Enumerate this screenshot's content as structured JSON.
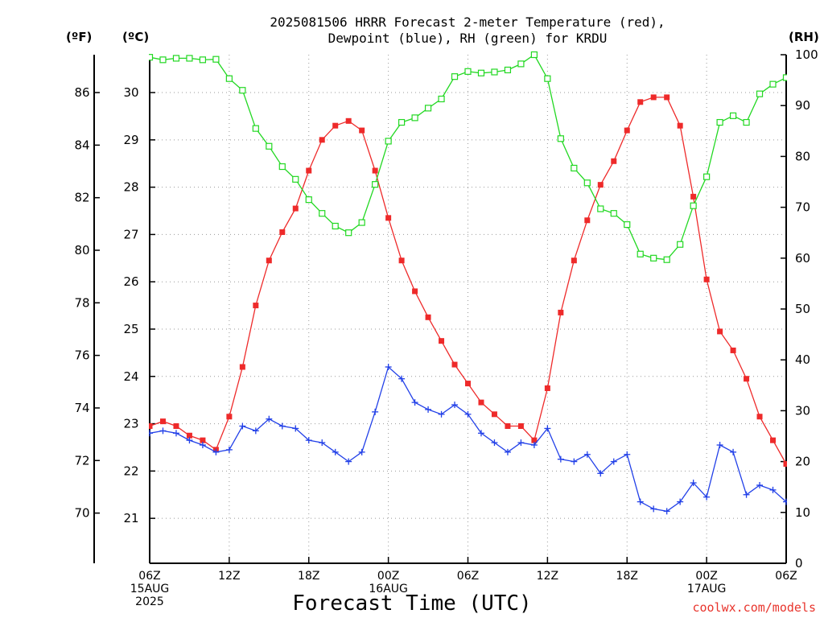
{
  "title_line1": "2025081506 HRRR Forecast 2-meter Temperature (red),",
  "title_line2": "Dewpoint (blue), RH (green) for KRDU",
  "credit": "coolwx.com/models",
  "colors": {
    "temperature": "#ee2a2a",
    "dewpoint": "#2240e8",
    "rh": "#22d822",
    "axis": "#000000",
    "grid": "#999999",
    "credit": "#e8342c"
  },
  "chart_data": {
    "type": "line",
    "xlabel": "Forecast Time (UTC)",
    "x_unit": "forecast hour from 2025-08-15 06Z",
    "x": [
      0,
      1,
      2,
      3,
      4,
      5,
      6,
      7,
      8,
      9,
      10,
      11,
      12,
      13,
      14,
      15,
      16,
      17,
      18,
      19,
      20,
      21,
      22,
      23,
      24,
      25,
      26,
      27,
      28,
      29,
      30,
      31,
      32,
      33,
      34,
      35,
      36,
      37,
      38,
      39,
      40,
      41,
      42,
      43,
      44,
      45,
      46,
      47,
      48
    ],
    "xlim": [
      0,
      48
    ],
    "x_ticks": [
      {
        "hour": 0,
        "lines": [
          "06Z",
          "15AUG",
          "2025"
        ]
      },
      {
        "hour": 6,
        "lines": [
          "12Z"
        ]
      },
      {
        "hour": 12,
        "lines": [
          "18Z"
        ]
      },
      {
        "hour": 18,
        "lines": [
          "00Z",
          "16AUG"
        ]
      },
      {
        "hour": 24,
        "lines": [
          "06Z"
        ]
      },
      {
        "hour": 30,
        "lines": [
          "12Z"
        ]
      },
      {
        "hour": 36,
        "lines": [
          "18Z"
        ]
      },
      {
        "hour": 42,
        "lines": [
          "00Z",
          "17AUG"
        ]
      },
      {
        "hour": 48,
        "lines": [
          "06Z"
        ]
      }
    ],
    "axes": {
      "fahrenheit": {
        "label": "(ºF)",
        "ticks": [
          70,
          72,
          74,
          76,
          78,
          80,
          82,
          84,
          86
        ]
      },
      "celsius": {
        "label": "(ºC)",
        "ticks": [
          21,
          22,
          23,
          24,
          25,
          26,
          27,
          28,
          29,
          30
        ],
        "ylim": [
          20.05,
          30.8
        ]
      },
      "rh": {
        "label": "(RH)",
        "ticks": [
          0,
          10,
          20,
          30,
          40,
          50,
          60,
          70,
          80,
          90,
          100
        ],
        "ylim": [
          0,
          100
        ]
      }
    },
    "grid": true,
    "series": [
      {
        "name": "Temperature",
        "axis": "celsius",
        "marker": "filled-square",
        "values": [
          22.95,
          23.05,
          22.95,
          22.75,
          22.65,
          22.45,
          23.15,
          24.2,
          25.5,
          26.45,
          27.05,
          27.55,
          28.35,
          29.0,
          29.3,
          29.4,
          29.2,
          28.35,
          27.35,
          26.45,
          25.8,
          25.25,
          24.75,
          24.25,
          23.85,
          23.45,
          23.2,
          22.95,
          22.95,
          22.65,
          23.75,
          25.35,
          26.45,
          27.3,
          28.05,
          28.55,
          29.2,
          29.8,
          29.9,
          29.9,
          29.3,
          27.8,
          26.05,
          24.95,
          24.55,
          23.95,
          23.15,
          22.65,
          22.15
        ]
      },
      {
        "name": "Dewpoint",
        "axis": "celsius",
        "marker": "plus",
        "values": [
          22.8,
          22.85,
          22.8,
          22.65,
          22.55,
          22.4,
          22.45,
          22.95,
          22.85,
          23.1,
          22.95,
          22.9,
          22.65,
          22.6,
          22.4,
          22.2,
          22.4,
          23.25,
          24.2,
          23.95,
          23.45,
          23.3,
          23.2,
          23.4,
          23.2,
          22.8,
          22.6,
          22.4,
          22.6,
          22.55,
          22.9,
          22.25,
          22.2,
          22.35,
          21.95,
          22.2,
          22.35,
          21.35,
          21.2,
          21.15,
          21.35,
          21.75,
          21.45,
          22.55,
          22.4,
          21.5,
          21.7,
          21.6,
          21.35
        ]
      },
      {
        "name": "RH",
        "axis": "rh",
        "marker": "open-square",
        "values": [
          99.5,
          99.0,
          99.3,
          99.3,
          99.0,
          99.1,
          95.3,
          93.0,
          85.5,
          82.0,
          78.0,
          75.5,
          71.5,
          68.8,
          66.3,
          65.0,
          67.0,
          74.5,
          83.0,
          86.7,
          87.6,
          89.5,
          91.3,
          95.7,
          96.7,
          96.4,
          96.6,
          97.0,
          98.2,
          100.0,
          95.3,
          83.5,
          77.7,
          74.8,
          69.7,
          68.8,
          66.6,
          60.8,
          60.0,
          59.7,
          62.7,
          70.3,
          76.0,
          86.7,
          88.0,
          86.7,
          92.3,
          94.2,
          95.5
        ]
      }
    ]
  }
}
